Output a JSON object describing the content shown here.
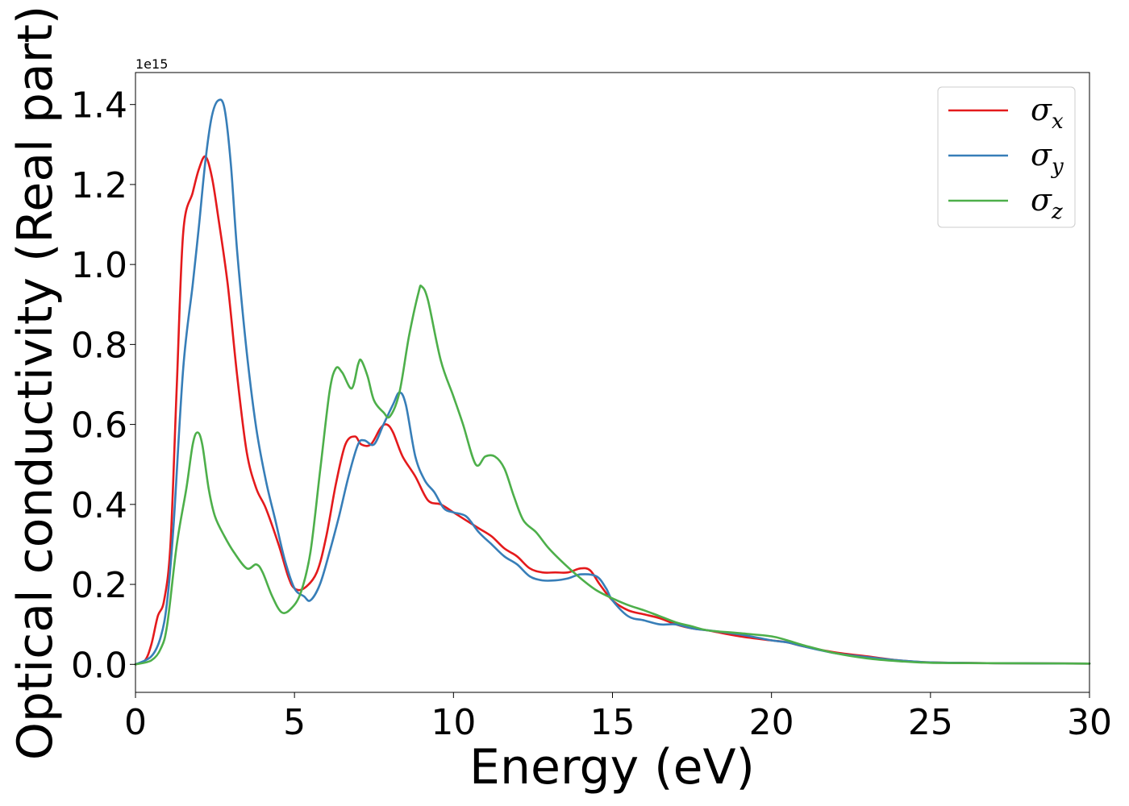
{
  "chart_data": {
    "type": "line",
    "title": "",
    "xlabel": "Energy (eV)",
    "ylabel": "Optical conductivity (Real part)",
    "y_offset_label": "1e15",
    "xlim": [
      0,
      30
    ],
    "ylim": [
      -0.07,
      1.48
    ],
    "xticks": [
      0,
      5,
      10,
      15,
      20,
      25,
      30
    ],
    "xtick_labels": [
      "0",
      "5",
      "10",
      "15",
      "20",
      "25",
      "30"
    ],
    "yticks": [
      0.0,
      0.2,
      0.4,
      0.6,
      0.8,
      1.0,
      1.2,
      1.4
    ],
    "ytick_labels": [
      "0.0",
      "0.2",
      "0.4",
      "0.6",
      "0.8",
      "1.0",
      "1.2",
      "1.4"
    ],
    "grid": false,
    "legend_position": "top-right",
    "series": [
      {
        "name": "σx",
        "legend_base": "σ",
        "legend_sub": "x",
        "color": "#e41a1c",
        "points": [
          [
            0,
            0.0
          ],
          [
            0.3,
            0.01
          ],
          [
            0.5,
            0.05
          ],
          [
            0.7,
            0.12
          ],
          [
            0.9,
            0.16
          ],
          [
            1.1,
            0.3
          ],
          [
            1.3,
            0.7
          ],
          [
            1.5,
            1.08
          ],
          [
            1.8,
            1.18
          ],
          [
            2.0,
            1.24
          ],
          [
            2.2,
            1.27
          ],
          [
            2.4,
            1.22
          ],
          [
            2.6,
            1.12
          ],
          [
            2.9,
            0.95
          ],
          [
            3.2,
            0.72
          ],
          [
            3.5,
            0.53
          ],
          [
            3.8,
            0.44
          ],
          [
            4.1,
            0.39
          ],
          [
            4.5,
            0.3
          ],
          [
            4.8,
            0.22
          ],
          [
            5.0,
            0.19
          ],
          [
            5.3,
            0.19
          ],
          [
            5.7,
            0.23
          ],
          [
            6.0,
            0.32
          ],
          [
            6.3,
            0.45
          ],
          [
            6.6,
            0.55
          ],
          [
            6.9,
            0.57
          ],
          [
            7.1,
            0.55
          ],
          [
            7.4,
            0.55
          ],
          [
            7.7,
            0.59
          ],
          [
            7.9,
            0.6
          ],
          [
            8.1,
            0.58
          ],
          [
            8.4,
            0.52
          ],
          [
            8.8,
            0.47
          ],
          [
            9.2,
            0.41
          ],
          [
            9.6,
            0.4
          ],
          [
            10.0,
            0.38
          ],
          [
            10.4,
            0.36
          ],
          [
            10.8,
            0.34
          ],
          [
            11.2,
            0.32
          ],
          [
            11.6,
            0.29
          ],
          [
            12.0,
            0.27
          ],
          [
            12.4,
            0.24
          ],
          [
            12.8,
            0.23
          ],
          [
            13.2,
            0.23
          ],
          [
            13.6,
            0.23
          ],
          [
            14.0,
            0.24
          ],
          [
            14.3,
            0.235
          ],
          [
            14.6,
            0.2
          ],
          [
            15.0,
            0.16
          ],
          [
            15.5,
            0.135
          ],
          [
            16.0,
            0.125
          ],
          [
            16.5,
            0.115
          ],
          [
            17.0,
            0.1
          ],
          [
            17.5,
            0.09
          ],
          [
            18.0,
            0.085
          ],
          [
            19.0,
            0.07
          ],
          [
            20.0,
            0.06
          ],
          [
            20.5,
            0.055
          ],
          [
            21.0,
            0.045
          ],
          [
            22.0,
            0.03
          ],
          [
            23.0,
            0.02
          ],
          [
            24.0,
            0.01
          ],
          [
            25.0,
            0.005
          ],
          [
            27.0,
            0.003
          ],
          [
            30.0,
            0.002
          ]
        ]
      },
      {
        "name": "σy",
        "legend_base": "σ",
        "legend_sub": "y",
        "color": "#377eb8",
        "points": [
          [
            0,
            0.0
          ],
          [
            0.5,
            0.02
          ],
          [
            0.8,
            0.07
          ],
          [
            1.0,
            0.16
          ],
          [
            1.2,
            0.35
          ],
          [
            1.5,
            0.74
          ],
          [
            1.8,
            0.95
          ],
          [
            2.0,
            1.1
          ],
          [
            2.2,
            1.26
          ],
          [
            2.4,
            1.37
          ],
          [
            2.6,
            1.41
          ],
          [
            2.8,
            1.39
          ],
          [
            3.0,
            1.25
          ],
          [
            3.2,
            1.03
          ],
          [
            3.5,
            0.78
          ],
          [
            3.8,
            0.59
          ],
          [
            4.1,
            0.46
          ],
          [
            4.4,
            0.36
          ],
          [
            4.7,
            0.26
          ],
          [
            5.0,
            0.19
          ],
          [
            5.3,
            0.17
          ],
          [
            5.5,
            0.16
          ],
          [
            5.8,
            0.2
          ],
          [
            6.1,
            0.28
          ],
          [
            6.4,
            0.37
          ],
          [
            6.7,
            0.47
          ],
          [
            7.0,
            0.55
          ],
          [
            7.2,
            0.56
          ],
          [
            7.5,
            0.55
          ],
          [
            7.8,
            0.6
          ],
          [
            8.1,
            0.65
          ],
          [
            8.3,
            0.68
          ],
          [
            8.5,
            0.65
          ],
          [
            8.8,
            0.52
          ],
          [
            9.1,
            0.46
          ],
          [
            9.4,
            0.43
          ],
          [
            9.7,
            0.39
          ],
          [
            10.0,
            0.38
          ],
          [
            10.4,
            0.37
          ],
          [
            10.8,
            0.33
          ],
          [
            11.2,
            0.3
          ],
          [
            11.6,
            0.27
          ],
          [
            12.0,
            0.25
          ],
          [
            12.4,
            0.22
          ],
          [
            12.8,
            0.21
          ],
          [
            13.2,
            0.21
          ],
          [
            13.6,
            0.215
          ],
          [
            14.0,
            0.225
          ],
          [
            14.5,
            0.22
          ],
          [
            14.8,
            0.19
          ],
          [
            15.0,
            0.16
          ],
          [
            15.5,
            0.12
          ],
          [
            16.0,
            0.11
          ],
          [
            16.5,
            0.1
          ],
          [
            17.0,
            0.1
          ],
          [
            17.5,
            0.09
          ],
          [
            18.0,
            0.085
          ],
          [
            19.0,
            0.075
          ],
          [
            20.0,
            0.06
          ],
          [
            20.5,
            0.055
          ],
          [
            21.0,
            0.045
          ],
          [
            22.0,
            0.028
          ],
          [
            23.0,
            0.018
          ],
          [
            24.0,
            0.01
          ],
          [
            25.0,
            0.005
          ],
          [
            27.0,
            0.003
          ],
          [
            30.0,
            0.002
          ]
        ]
      },
      {
        "name": "σz",
        "legend_base": "σ",
        "legend_sub": "z",
        "color": "#4daf4a",
        "points": [
          [
            0,
            0.0
          ],
          [
            0.5,
            0.01
          ],
          [
            0.8,
            0.04
          ],
          [
            1.0,
            0.1
          ],
          [
            1.3,
            0.3
          ],
          [
            1.6,
            0.44
          ],
          [
            1.8,
            0.55
          ],
          [
            1.95,
            0.58
          ],
          [
            2.1,
            0.55
          ],
          [
            2.3,
            0.44
          ],
          [
            2.5,
            0.37
          ],
          [
            2.8,
            0.32
          ],
          [
            3.1,
            0.28
          ],
          [
            3.5,
            0.24
          ],
          [
            3.8,
            0.25
          ],
          [
            4.0,
            0.23
          ],
          [
            4.3,
            0.17
          ],
          [
            4.6,
            0.13
          ],
          [
            4.9,
            0.14
          ],
          [
            5.2,
            0.18
          ],
          [
            5.5,
            0.28
          ],
          [
            5.8,
            0.48
          ],
          [
            6.1,
            0.68
          ],
          [
            6.3,
            0.74
          ],
          [
            6.5,
            0.73
          ],
          [
            6.8,
            0.69
          ],
          [
            7.0,
            0.75
          ],
          [
            7.1,
            0.76
          ],
          [
            7.3,
            0.72
          ],
          [
            7.5,
            0.66
          ],
          [
            7.8,
            0.63
          ],
          [
            8.0,
            0.62
          ],
          [
            8.3,
            0.68
          ],
          [
            8.6,
            0.82
          ],
          [
            8.9,
            0.93
          ],
          [
            9.0,
            0.945
          ],
          [
            9.2,
            0.91
          ],
          [
            9.6,
            0.76
          ],
          [
            10.0,
            0.67
          ],
          [
            10.3,
            0.6
          ],
          [
            10.7,
            0.5
          ],
          [
            11.0,
            0.52
          ],
          [
            11.3,
            0.52
          ],
          [
            11.6,
            0.49
          ],
          [
            11.9,
            0.42
          ],
          [
            12.2,
            0.36
          ],
          [
            12.6,
            0.33
          ],
          [
            13.0,
            0.29
          ],
          [
            13.5,
            0.25
          ],
          [
            14.0,
            0.215
          ],
          [
            14.5,
            0.185
          ],
          [
            15.0,
            0.165
          ],
          [
            15.5,
            0.148
          ],
          [
            16.0,
            0.135
          ],
          [
            16.5,
            0.12
          ],
          [
            17.0,
            0.105
          ],
          [
            17.5,
            0.095
          ],
          [
            18.0,
            0.085
          ],
          [
            19.0,
            0.078
          ],
          [
            20.0,
            0.07
          ],
          [
            20.5,
            0.06
          ],
          [
            21.0,
            0.048
          ],
          [
            22.0,
            0.028
          ],
          [
            23.0,
            0.015
          ],
          [
            24.0,
            0.008
          ],
          [
            25.0,
            0.004
          ],
          [
            27.0,
            0.003
          ],
          [
            30.0,
            0.002
          ]
        ]
      }
    ]
  }
}
